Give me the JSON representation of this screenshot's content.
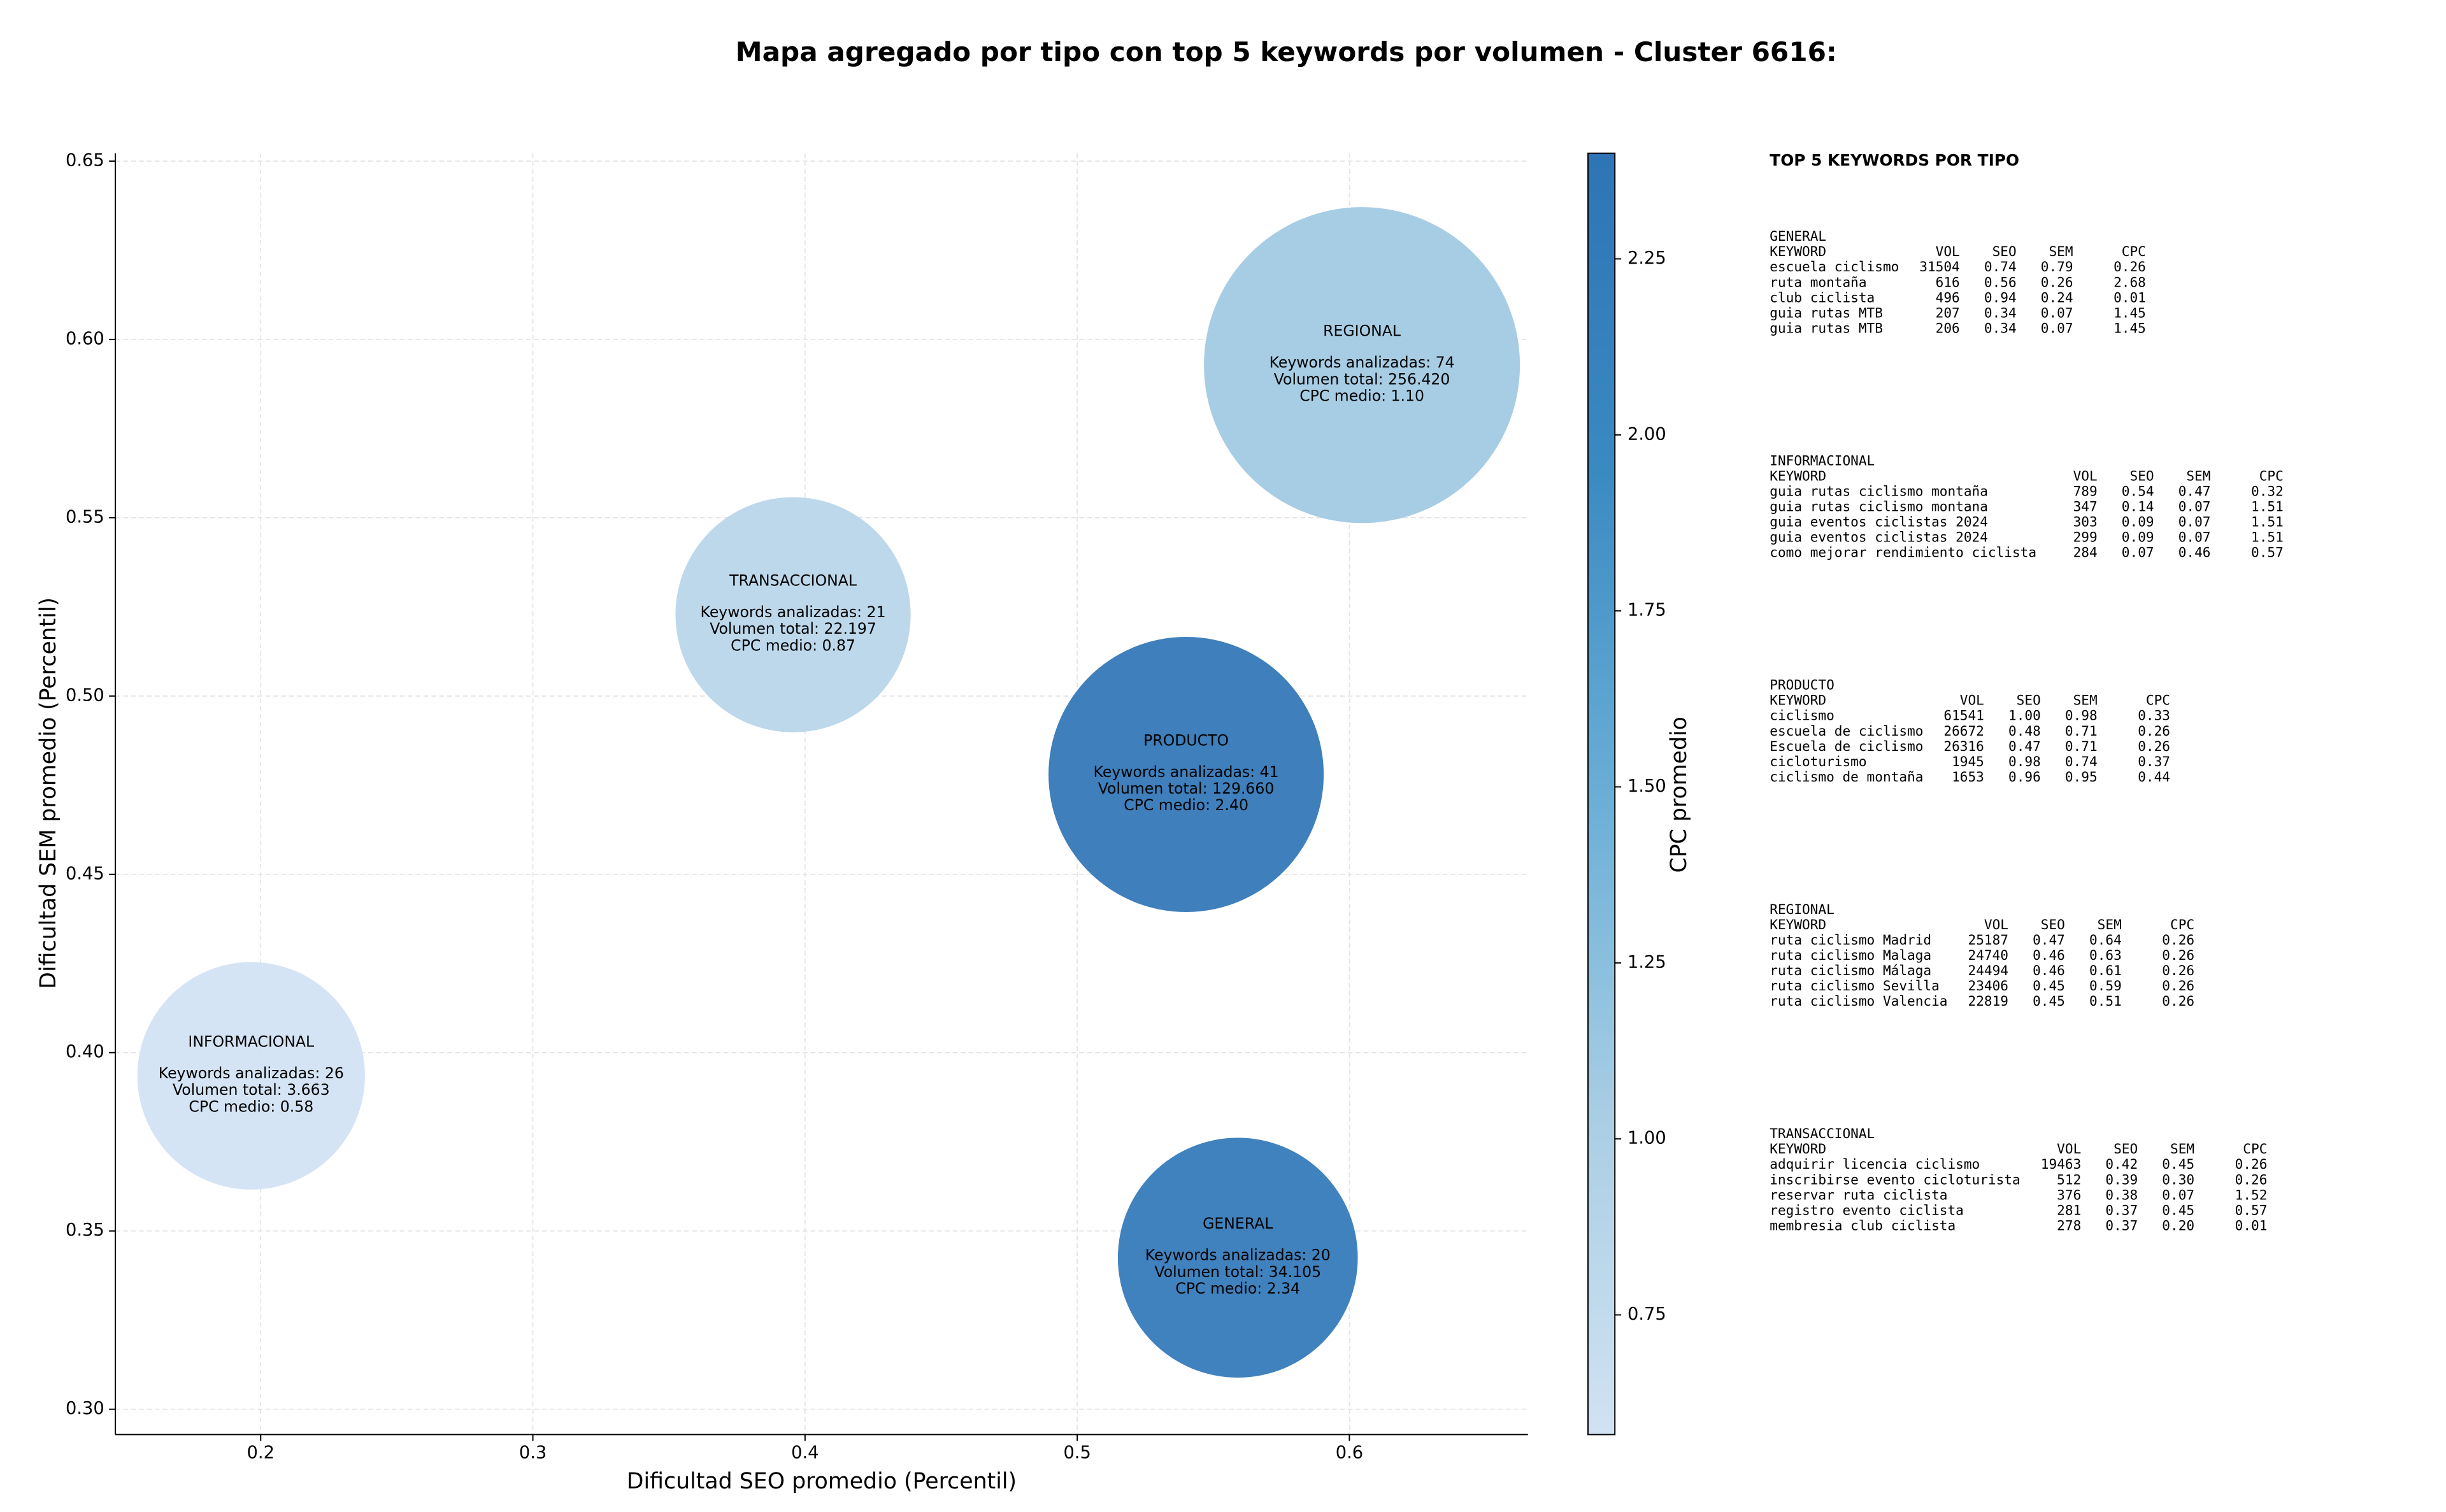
{
  "chart_data": {
    "type": "bubble",
    "title": "Mapa agregado por tipo con top 5 keywords por volumen - Cluster 6616:",
    "x_label": "Dificultad SEO promedio (Percentil)",
    "y_label": "Dificultad SEM promedio (Percentil)",
    "colorbar_label": "CPC promedio",
    "xlim": [
      0.1466,
      0.6656
    ],
    "xticks": [
      0.2,
      0.3,
      0.4,
      0.5,
      0.6
    ],
    "ylim": [
      0.2929,
      0.6522
    ],
    "yticks": [
      {
        "value": 0.3,
        "label": "0.30"
      },
      0.35,
      {
        "value": 0.4,
        "label": "0.40"
      },
      0.45,
      {
        "value": 0.5,
        "label": "0.50"
      },
      0.55,
      {
        "value": 0.6,
        "label": "0.60"
      },
      0.65
    ],
    "clim": [
      0.58,
      2.4
    ],
    "cticks": [
      0.75,
      {
        "value": 1.0,
        "label": "1.00"
      },
      1.25,
      {
        "value": 1.5,
        "label": "1.50"
      },
      1.75,
      {
        "value": 2.0,
        "label": "2.00"
      },
      2.25
    ],
    "colormap": [
      "#d1e2f3",
      "#a8cee4",
      "#6aaed6",
      "#3a8ac2",
      "#2e74b6"
    ],
    "grid": true,
    "points": [
      {
        "name": "REGIONAL",
        "x": 0.6046,
        "y": 0.5928,
        "volume": 256420,
        "cpc": 1.1,
        "labels": [
          "Keywords analizadas: 74",
          "Volumen total: 256.420",
          "CPC medio: 1.10"
        ]
      },
      {
        "name": "TRANSACCIONAL",
        "x": 0.3956,
        "y": 0.5228,
        "volume": 22197,
        "cpc": 0.87,
        "labels": [
          "Keywords analizadas: 21",
          "Volumen total: 22.197",
          "CPC medio: 0.87"
        ]
      },
      {
        "name": "PRODUCTO",
        "x": 0.54,
        "y": 0.478,
        "volume": 129660,
        "cpc": 2.4,
        "labels": [
          "Keywords analizadas: 41",
          "Volumen total: 129.660",
          "CPC medio: 2.40"
        ]
      },
      {
        "name": "INFORMACIONAL",
        "x": 0.1965,
        "y": 0.3935,
        "volume": 3663,
        "cpc": 0.58,
        "labels": [
          "Keywords analizadas: 26",
          "Volumen total: 3.663",
          "CPC medio: 0.58"
        ]
      },
      {
        "name": "GENERAL",
        "x": 0.559,
        "y": 0.3425,
        "volume": 34105,
        "cpc": 2.34,
        "labels": [
          "Keywords analizadas: 20",
          "Volumen total: 34.105",
          "CPC medio: 2.34"
        ]
      }
    ]
  },
  "table_panel": {
    "title": "TOP 5 KEYWORDS POR TIPO",
    "sections": [
      {
        "name": "GENERAL",
        "header": [
          "KEYWORD",
          "VOL",
          "SEO",
          "SEM",
          "CPC"
        ],
        "rows": [
          [
            "escuela ciclismo",
            "31504",
            "0.74",
            "0.79",
            "0.26"
          ],
          [
            "ruta montaña",
            "616",
            "0.56",
            "0.26",
            "2.68"
          ],
          [
            "club ciclista",
            "496",
            "0.94",
            "0.24",
            "0.01"
          ],
          [
            "guia rutas MTB",
            "207",
            "0.34",
            "0.07",
            "1.45"
          ],
          [
            "guia rutas MTB",
            "206",
            "0.34",
            "0.07",
            "1.45"
          ]
        ]
      },
      {
        "name": "INFORMACIONAL",
        "header": [
          "KEYWORD",
          "VOL",
          "SEO",
          "SEM",
          "CPC"
        ],
        "rows": [
          [
            "guia rutas ciclismo montaña",
            "789",
            "0.54",
            "0.47",
            "0.32"
          ],
          [
            "guia rutas ciclismo montana",
            "347",
            "0.14",
            "0.07",
            "1.51"
          ],
          [
            "guia eventos ciclistas 2024",
            "303",
            "0.09",
            "0.07",
            "1.51"
          ],
          [
            "guia eventos ciclistas 2024",
            "299",
            "0.09",
            "0.07",
            "1.51"
          ],
          [
            "como mejorar rendimiento ciclista",
            "284",
            "0.07",
            "0.46",
            "0.57"
          ]
        ]
      },
      {
        "name": "PRODUCTO",
        "header": [
          "KEYWORD",
          "VOL",
          "SEO",
          "SEM",
          "CPC"
        ],
        "rows": [
          [
            "ciclismo",
            "61541",
            "1.00",
            "0.98",
            "0.33"
          ],
          [
            "escuela de ciclismo",
            "26672",
            "0.48",
            "0.71",
            "0.26"
          ],
          [
            "Escuela de ciclismo",
            "26316",
            "0.47",
            "0.71",
            "0.26"
          ],
          [
            "cicloturismo",
            "1945",
            "0.98",
            "0.74",
            "0.37"
          ],
          [
            "ciclismo de montaña",
            "1653",
            "0.96",
            "0.95",
            "0.44"
          ]
        ]
      },
      {
        "name": "REGIONAL",
        "header": [
          "KEYWORD",
          "VOL",
          "SEO",
          "SEM",
          "CPC"
        ],
        "rows": [
          [
            "ruta ciclismo Madrid",
            "25187",
            "0.47",
            "0.64",
            "0.26"
          ],
          [
            "ruta ciclismo Malaga",
            "24740",
            "0.46",
            "0.63",
            "0.26"
          ],
          [
            "ruta ciclismo Málaga",
            "24494",
            "0.46",
            "0.61",
            "0.26"
          ],
          [
            "ruta ciclismo Sevilla",
            "23406",
            "0.45",
            "0.59",
            "0.26"
          ],
          [
            "ruta ciclismo Valencia",
            "22819",
            "0.45",
            "0.51",
            "0.26"
          ]
        ]
      },
      {
        "name": "TRANSACCIONAL",
        "header": [
          "KEYWORD",
          "VOL",
          "SEO",
          "SEM",
          "CPC"
        ],
        "rows": [
          [
            "adquirir licencia ciclismo",
            "19463",
            "0.42",
            "0.45",
            "0.26"
          ],
          [
            "inscribirse evento cicloturista",
            "512",
            "0.39",
            "0.30",
            "0.26"
          ],
          [
            "reservar ruta ciclista",
            "376",
            "0.38",
            "0.07",
            "1.52"
          ],
          [
            "registro evento ciclista",
            "281",
            "0.37",
            "0.45",
            "0.57"
          ],
          [
            "membresia club ciclista",
            "278",
            "0.37",
            "0.20",
            "0.01"
          ]
        ]
      }
    ]
  }
}
